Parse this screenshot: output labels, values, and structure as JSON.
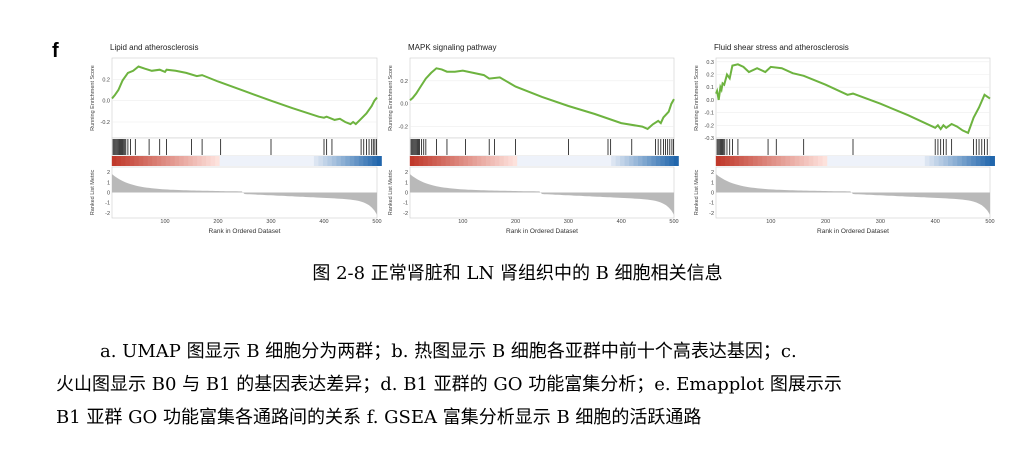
{
  "panel_label": "f",
  "caption": "图 2-8 正常肾脏和 LN 肾组织中的 B 细胞相关信息",
  "description_lines": [
    "a. UMAP 图显示 B 细胞分为两群；b. 热图显示 B 细胞各亚群中前十个高表达基因；c.",
    "火山图显示 B0 与 B1 的基因表达差异；d. B1 亚群的 GO 功能富集分析；e. Emapplot 图展示示",
    "B1 亚群 GO 功能富集各通路间的关系 f. GSEA 富集分析显示 B 细胞的活跃通路"
  ],
  "colors": {
    "curve": "#6db33f",
    "metric_fill": "#b9b9b9",
    "high": "#c0392b",
    "low": "#2166ac"
  },
  "chart_data": [
    {
      "type": "line",
      "title": "Lipid and atherosclerosis",
      "ylabel": "Running Enrichment Score",
      "xlabel": "Rank in Ordered Dataset",
      "metric_ylabel": "Ranked List Metric",
      "ylim": [
        -0.35,
        0.4
      ],
      "yticks": [
        0.2,
        0.0,
        -0.2
      ],
      "xlim": [
        0,
        500
      ],
      "xticks": [
        100,
        200,
        300,
        400,
        500
      ],
      "metric_ylim": [
        -2.5,
        2.5
      ],
      "metric_yticks": [
        2,
        1,
        0,
        -1,
        -2
      ],
      "x": [
        0,
        5,
        12,
        20,
        30,
        40,
        50,
        62,
        75,
        90,
        100,
        103,
        120,
        140,
        160,
        170,
        200,
        250,
        300,
        340,
        390,
        400,
        405,
        415,
        420,
        430,
        440,
        450,
        455,
        460,
        470,
        480,
        490,
        495,
        500
      ],
      "y": [
        0.02,
        0.05,
        0.1,
        0.19,
        0.26,
        0.28,
        0.32,
        0.3,
        0.28,
        0.29,
        0.27,
        0.29,
        0.28,
        0.26,
        0.23,
        0.24,
        0.18,
        0.09,
        0.0,
        -0.07,
        -0.15,
        -0.16,
        -0.15,
        -0.17,
        -0.18,
        -0.17,
        -0.2,
        -0.22,
        -0.2,
        -0.22,
        -0.17,
        -0.12,
        -0.05,
        0.0,
        0.03
      ],
      "hits": [
        2,
        4,
        6,
        8,
        10,
        12,
        14,
        16,
        18,
        20,
        22,
        24,
        26,
        30,
        35,
        44,
        70,
        90,
        103,
        150,
        170,
        205,
        300,
        400,
        405,
        415,
        470,
        475,
        480,
        485,
        490,
        493,
        496,
        499
      ]
    },
    {
      "type": "line",
      "title": "MAPK signaling pathway",
      "ylabel": "Running Enrichment Score",
      "xlabel": "Rank in Ordered Dataset",
      "metric_ylabel": "Ranked List Metric",
      "ylim": [
        -0.3,
        0.4
      ],
      "yticks": [
        0.2,
        0.0,
        -0.2
      ],
      "xlim": [
        0,
        500
      ],
      "xticks": [
        100,
        200,
        300,
        400,
        500
      ],
      "metric_ylim": [
        -2.5,
        2.5
      ],
      "metric_yticks": [
        2,
        1,
        0,
        -1,
        -2
      ],
      "x": [
        0,
        5,
        12,
        20,
        30,
        40,
        50,
        60,
        70,
        85,
        100,
        120,
        140,
        150,
        170,
        200,
        250,
        300,
        350,
        400,
        440,
        450,
        460,
        470,
        475,
        480,
        490,
        495,
        500
      ],
      "y": [
        0.03,
        0.05,
        0.09,
        0.15,
        0.22,
        0.27,
        0.31,
        0.3,
        0.28,
        0.28,
        0.29,
        0.27,
        0.25,
        0.22,
        0.23,
        0.15,
        0.06,
        -0.02,
        -0.09,
        -0.17,
        -0.2,
        -0.22,
        -0.18,
        -0.15,
        -0.17,
        -0.12,
        -0.07,
        0.0,
        0.04
      ],
      "hits": [
        2,
        4,
        6,
        8,
        10,
        12,
        14,
        16,
        18,
        22,
        26,
        30,
        50,
        70,
        105,
        150,
        160,
        200,
        300,
        375,
        380,
        420,
        465,
        470,
        475,
        480,
        484,
        488,
        492,
        496,
        499
      ]
    },
    {
      "type": "line",
      "title": "Fluid shear stress and atherosclerosis",
      "ylabel": "Running Enrichment Score",
      "xlabel": "Rank in Ordered Dataset",
      "metric_ylabel": "Ranked List Metric",
      "ylim": [
        -0.3,
        0.33
      ],
      "yticks": [
        0.3,
        0.2,
        0.1,
        0.0,
        -0.1,
        -0.2,
        -0.3
      ],
      "xlim": [
        0,
        500
      ],
      "xticks": [
        100,
        200,
        300,
        400,
        500
      ],
      "metric_ylim": [
        -2.5,
        2.5
      ],
      "metric_yticks": [
        2,
        1,
        0,
        -1,
        -2
      ],
      "x": [
        0,
        2,
        5,
        8,
        10,
        12,
        15,
        20,
        25,
        30,
        40,
        50,
        60,
        75,
        90,
        100,
        120,
        140,
        160,
        200,
        240,
        250,
        300,
        350,
        400,
        405,
        410,
        415,
        420,
        430,
        440,
        450,
        460,
        470,
        480,
        490,
        500
      ],
      "y": [
        0.05,
        0.07,
        0.0,
        0.1,
        0.08,
        0.13,
        0.12,
        0.2,
        0.17,
        0.27,
        0.28,
        0.26,
        0.22,
        0.25,
        0.22,
        0.26,
        0.25,
        0.21,
        0.19,
        0.12,
        0.04,
        0.05,
        -0.03,
        -0.12,
        -0.22,
        -0.2,
        -0.23,
        -0.2,
        -0.22,
        -0.19,
        -0.21,
        -0.24,
        -0.26,
        -0.14,
        -0.06,
        0.04,
        0.01
      ],
      "hits": [
        2,
        4,
        6,
        8,
        10,
        12,
        14,
        16,
        20,
        25,
        30,
        40,
        95,
        110,
        160,
        250,
        400,
        405,
        410,
        415,
        420,
        430,
        470,
        475,
        480,
        485,
        490,
        495
      ]
    }
  ]
}
